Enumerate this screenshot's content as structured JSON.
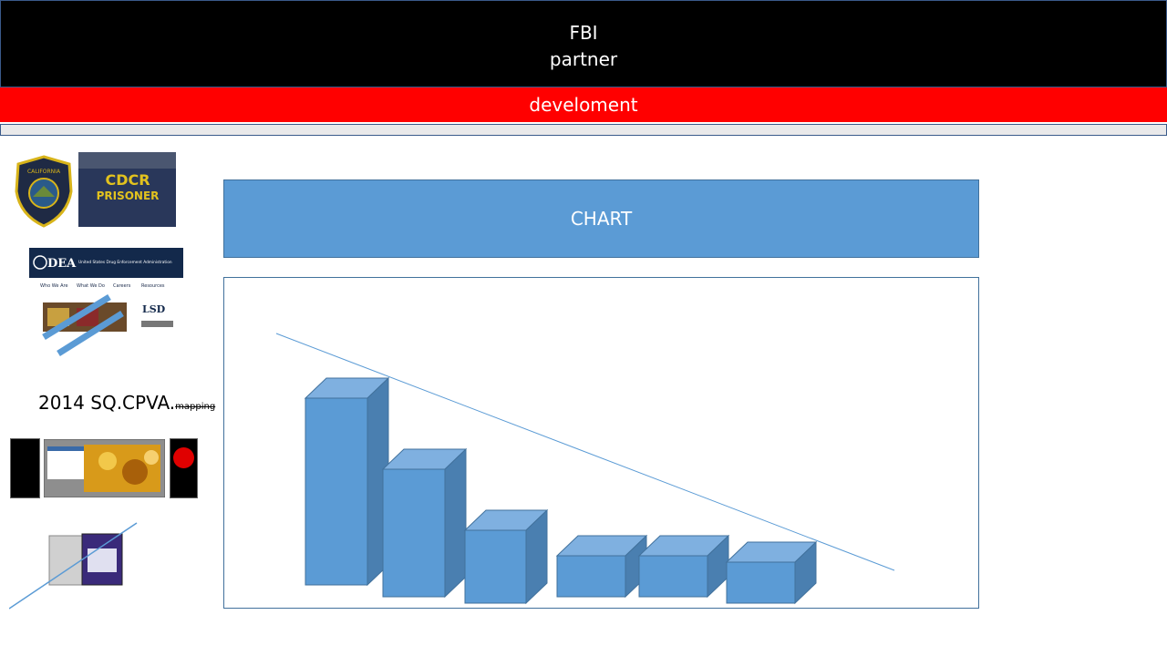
{
  "header": {
    "line1": "FBI",
    "line2": "partner"
  },
  "banner": {
    "text": "develoment"
  },
  "chart_title": {
    "text": "CHART"
  },
  "sidebar": {
    "seal_text": "CALIFORNIA DEPARTMENT OF CORRECTIONS & REHABILITATION",
    "jacket_text_1": "CDCR",
    "jacket_text_2": "PRISONER",
    "dea_logo": "DEA",
    "dea_title": "United States Drug Enforcement Administration",
    "dea_nav": [
      "Who We Are",
      "What We Do",
      "Careers",
      "Resources"
    ],
    "lsd_label": "LSD",
    "caption_main": "2014 SQ.CPVA.",
    "caption_small": "mapping"
  },
  "colors": {
    "accent": "#5b9bd5",
    "banner": "#ff0000",
    "header": "#000000"
  },
  "chart_data": {
    "type": "bar",
    "categories": [
      "",
      "",
      "",
      "",
      "",
      ""
    ],
    "values": [
      205,
      140,
      80,
      45,
      45,
      45
    ],
    "ylim": [
      0,
      240
    ],
    "trendline": [
      225,
      0
    ],
    "title": "",
    "xlabel": "",
    "ylabel": ""
  }
}
